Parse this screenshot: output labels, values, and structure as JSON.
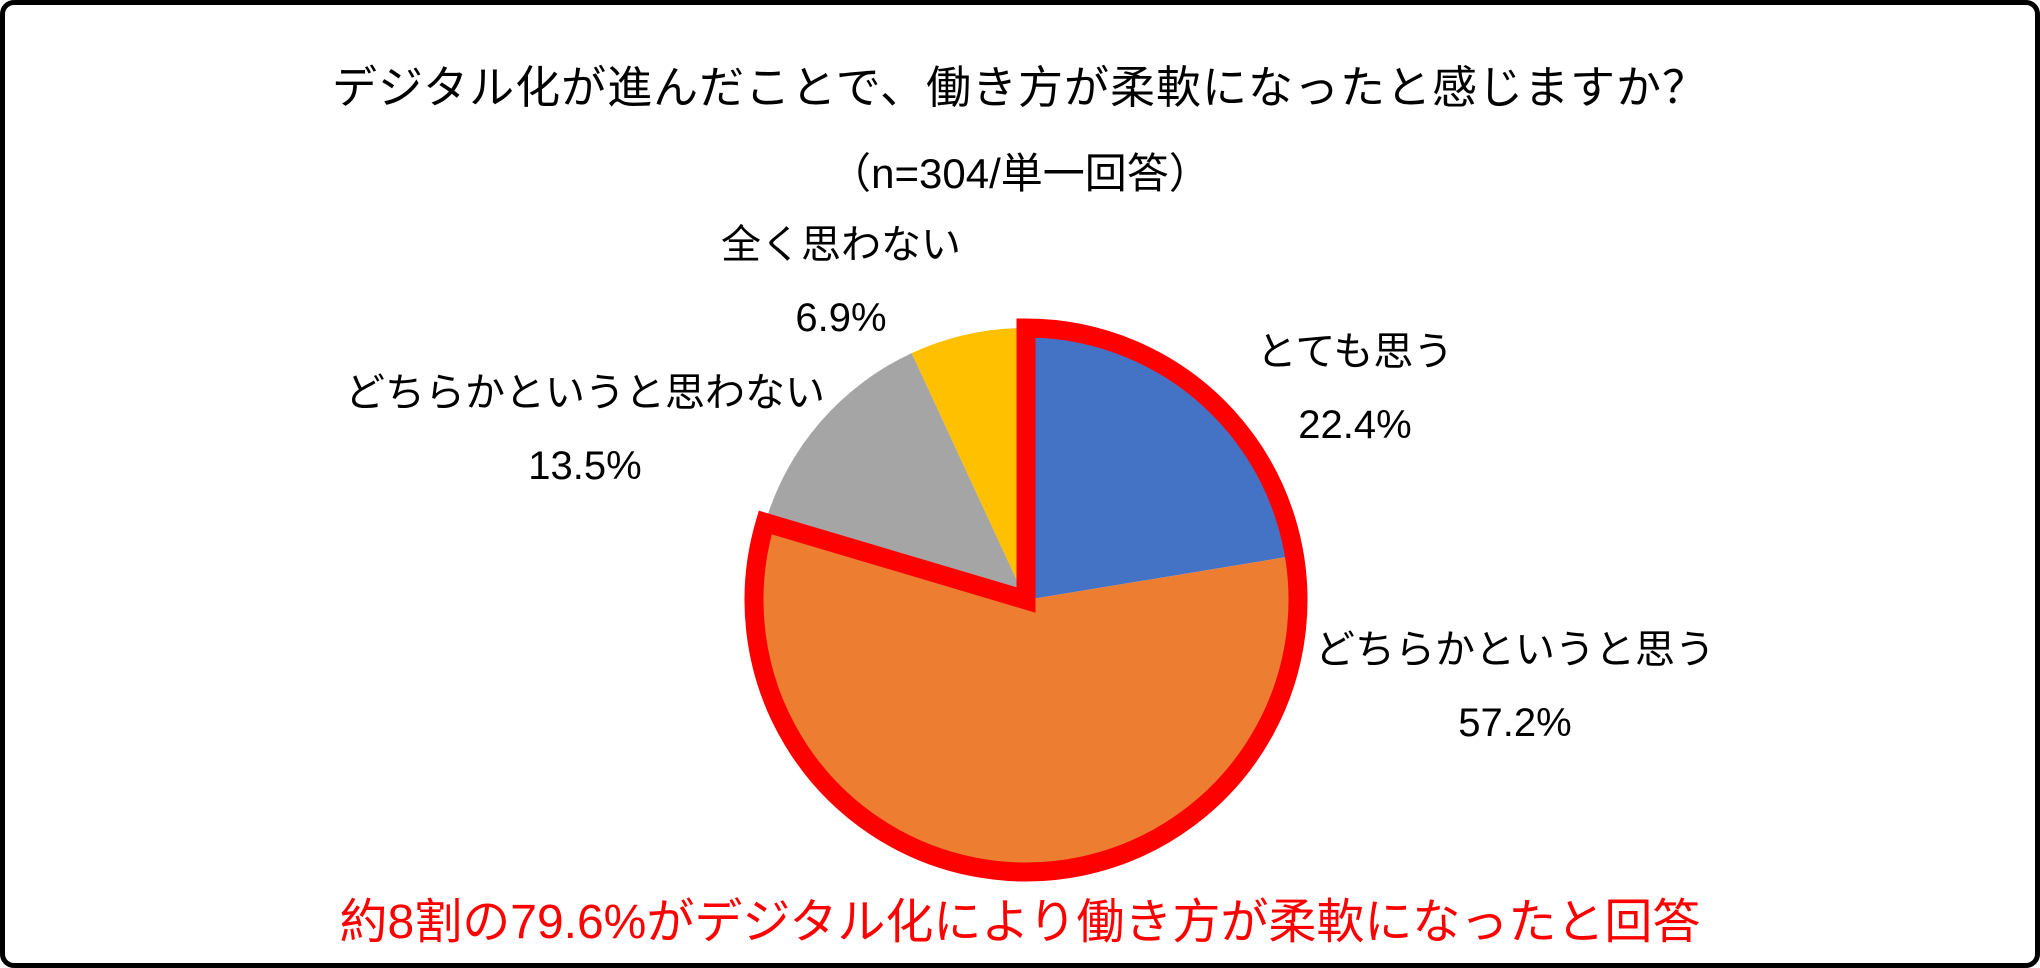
{
  "page": {
    "title": "デジタル化が進んだことで、働き方が柔軟になったと感じますか？",
    "subtitle": "（n=304/単一回答）",
    "summary_note": "約8割の79.6%がデジタル化により働き方が柔軟になったと回答",
    "colors": {
      "background": "#FFFFFF",
      "border": "#000000",
      "text": "#000000",
      "note_text": "#FF0000"
    }
  },
  "chart_data": {
    "type": "pie",
    "title": "デジタル化が進んだことで、働き方が柔軟になったと感じますか？",
    "subtitle": "（n=304/単一回答）",
    "sample_size": 304,
    "answer_type": "単一回答",
    "start_angle_deg": 0,
    "direction": "clockwise",
    "legend": "none",
    "labels_position": "outside",
    "slices": [
      {
        "name": "とても思う",
        "value": 22.4,
        "pct_label": "22.4%",
        "color": "#4472C4"
      },
      {
        "name": "どちらかというと思う",
        "value": 57.2,
        "pct_label": "57.2%",
        "color": "#ED7D31"
      },
      {
        "name": "どちらかというと思わない",
        "value": 13.5,
        "pct_label": "13.5%",
        "color": "#A5A5A5"
      },
      {
        "name": "全く思わない",
        "value": 6.9,
        "pct_label": "6.9%",
        "color": "#FFC000"
      }
    ],
    "highlight": {
      "slice_indices": [
        0,
        1
      ],
      "combined_pct_label": "79.6%",
      "color": "#FF0000",
      "stroke_width": 19
    },
    "annotation": "約8割の79.6%がデジタル化により働き方が柔軟になったと回答"
  }
}
